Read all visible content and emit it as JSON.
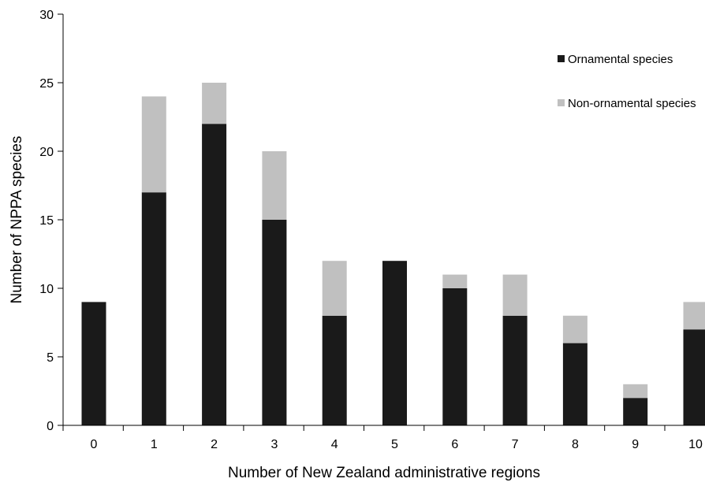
{
  "chart_data": {
    "type": "bar",
    "stacked": true,
    "categories": [
      "0",
      "1",
      "2",
      "3",
      "4",
      "5",
      "6",
      "7",
      "8",
      "9",
      "10"
    ],
    "series": [
      {
        "name": "Ornamental species",
        "values": [
          9,
          17,
          22,
          15,
          8,
          12,
          10,
          8,
          6,
          2,
          7
        ],
        "color": "#1a1a1a"
      },
      {
        "name": "Non-ornamental species",
        "values": [
          0,
          7,
          3,
          5,
          4,
          0,
          1,
          3,
          2,
          1,
          2
        ],
        "color": "#c0c0c0"
      }
    ],
    "xlabel": "Number of New Zealand administrative regions",
    "ylabel": "Number of NPPA species",
    "ylim": [
      0,
      30
    ],
    "yticks": [
      "0",
      "5",
      "10",
      "15",
      "20",
      "25",
      "30"
    ],
    "grid": false,
    "legend_position": "top-right"
  }
}
